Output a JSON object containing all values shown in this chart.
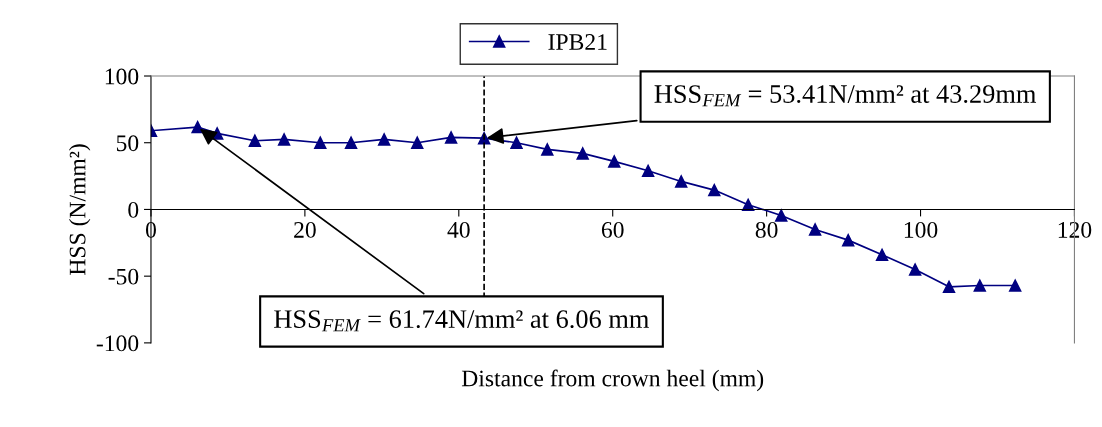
{
  "chart_data": {
    "type": "line",
    "xlabel": "Distance from crown heel (mm)",
    "ylabel": "HSS (N/mm²)",
    "x": [
      0,
      6.06,
      8.6,
      13.5,
      17.3,
      22,
      26,
      30.3,
      34.6,
      39,
      43.29,
      47.5,
      51.5,
      56.1,
      60.2,
      64.6,
      68.9,
      73.2,
      77.6,
      81.9,
      86.3,
      90.6,
      95,
      99.3,
      103.7,
      107.7,
      112.3
    ],
    "series": [
      {
        "name": "IPB21",
        "color": "#000080",
        "values": [
          59,
          61.74,
          57,
          51.5,
          52.5,
          50,
          50,
          52.5,
          50,
          54,
          53.41,
          50,
          45,
          42,
          36,
          29,
          21,
          14.5,
          3.5,
          -4.5,
          -15,
          -23,
          -34,
          -45,
          -58,
          -57,
          -57
        ]
      }
    ],
    "xlim": [
      0,
      120
    ],
    "xticks": [
      0,
      20,
      40,
      60,
      80,
      100,
      120
    ],
    "ylim": [
      -100,
      100
    ],
    "yticks": [
      -100,
      -50,
      0,
      50,
      100
    ],
    "ref_lines": [
      {
        "axis": "x",
        "value": 43.29,
        "label": null,
        "color": "#000000",
        "line_style": "dashed"
      }
    ],
    "annotations": [
      {
        "text": "HSS$_{FEM}$ = 53.41N/mm² at 43.29mm",
        "x": 43.29,
        "y": 53.41
      },
      {
        "text": "HSS$_{FEM}$ = 61.74N/mm² at 6.06 mm",
        "x": 6.06,
        "y": 61.74
      }
    ],
    "legend": "top",
    "grid": false,
    "marker": "triangle",
    "line_style": "solid"
  }
}
